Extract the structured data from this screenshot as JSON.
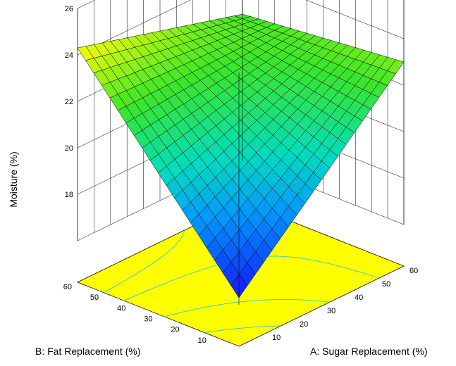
{
  "chart_data": {
    "type": "surface3d",
    "title": "",
    "zlabel": "Moisture (%)",
    "xlabel": "A: Sugar Replacement (%)",
    "ylabel": "B: Fat Replacement (%)",
    "xlim": [
      0,
      60
    ],
    "ylim": [
      0,
      60
    ],
    "zlim": [
      16,
      26
    ],
    "x_ticks": [
      "10",
      "20",
      "30",
      "40",
      "50",
      "60"
    ],
    "y_ticks": [
      "10",
      "20",
      "30",
      "40",
      "50",
      "60"
    ],
    "z_ticks": [
      "18",
      "20",
      "22",
      "24",
      "26"
    ],
    "grid": true,
    "floor_contours": true,
    "corner_values": {
      "A0_B0": 16.3,
      "A60_B0": 23.0,
      "A0_B60": 24.3,
      "A60_B60": 22.3
    },
    "colors": {
      "low": "#1a1aff",
      "mid": "#00d0c0",
      "high": "#ffff00",
      "floor": "#ffff00",
      "contour": "#35c8c8",
      "grid": "#000000"
    }
  }
}
